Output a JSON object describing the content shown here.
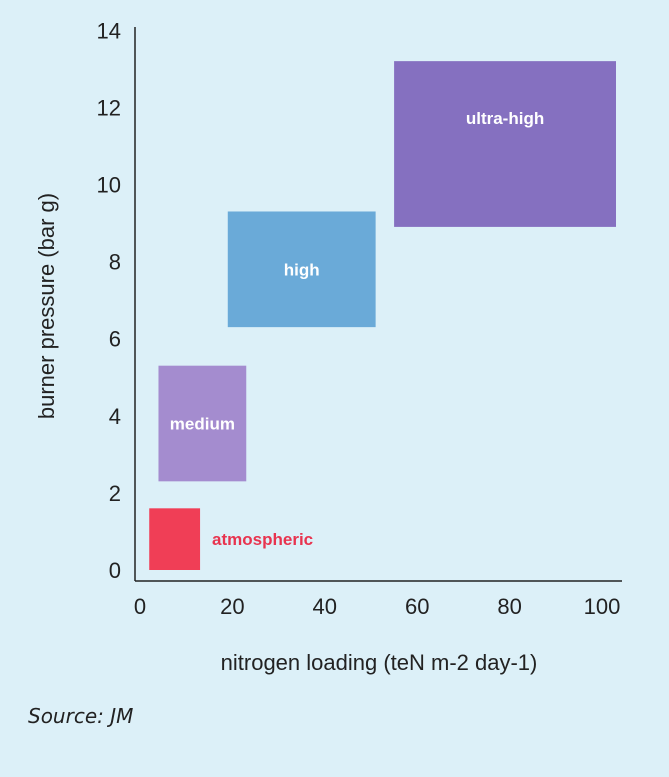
{
  "chart_data": {
    "type": "box-region",
    "xlabel": "nitrogen loading (teN m-2 day-1)",
    "ylabel": "burner pressure (bar g)",
    "xlim": [
      0,
      105
    ],
    "ylim": [
      0,
      14
    ],
    "x_ticks": [
      0,
      20,
      40,
      60,
      80,
      100
    ],
    "y_ticks": [
      0,
      2,
      4,
      6,
      8,
      10,
      12,
      14
    ],
    "regions": [
      {
        "name": "atmospheric",
        "x": [
          2,
          13
        ],
        "y": [
          0,
          1.6
        ],
        "color": "#f03e56",
        "label_color": "#e8344f",
        "label_position": "right"
      },
      {
        "name": "medium",
        "x": [
          4,
          23
        ],
        "y": [
          2.3,
          5.3
        ],
        "color": "#a48ccf",
        "label_color": "#ffffff",
        "label_position": "center"
      },
      {
        "name": "high",
        "x": [
          19,
          51
        ],
        "y": [
          6.3,
          9.3
        ],
        "color": "#6aaad8",
        "label_color": "#ffffff",
        "label_position": "center"
      },
      {
        "name": "ultra-high",
        "x": [
          55,
          105
        ],
        "y": [
          8.9,
          13.2
        ],
        "color": "#8570c0",
        "label_color": "#ffffff",
        "label_position": "center-upper"
      }
    ],
    "grid": false
  },
  "source": "Source: JM"
}
